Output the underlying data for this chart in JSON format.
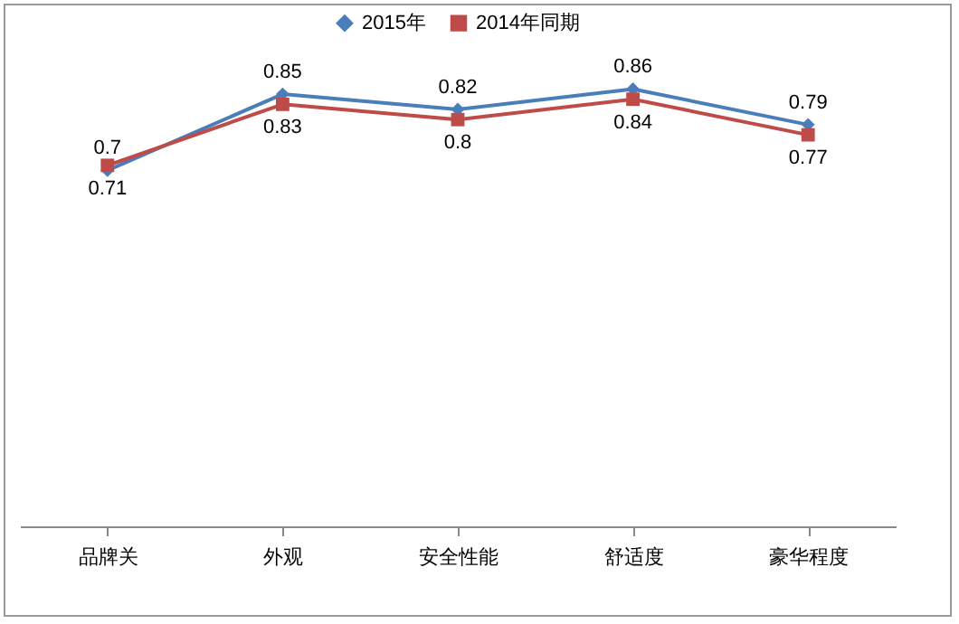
{
  "chart_data": {
    "type": "line",
    "categories": [
      "品牌关",
      "外观",
      "安全性能",
      "舒适度",
      "豪华程度"
    ],
    "series": [
      {
        "name": "2015年",
        "color": "#4a7ebb",
        "marker": "diamond",
        "values": [
          0.7,
          0.85,
          0.82,
          0.86,
          0.79
        ]
      },
      {
        "name": "2014年同期",
        "color": "#be4b48",
        "marker": "square",
        "values": [
          0.71,
          0.83,
          0.8,
          0.84,
          0.77
        ]
      }
    ],
    "legend": "top",
    "data_labels": true,
    "grid": false
  }
}
